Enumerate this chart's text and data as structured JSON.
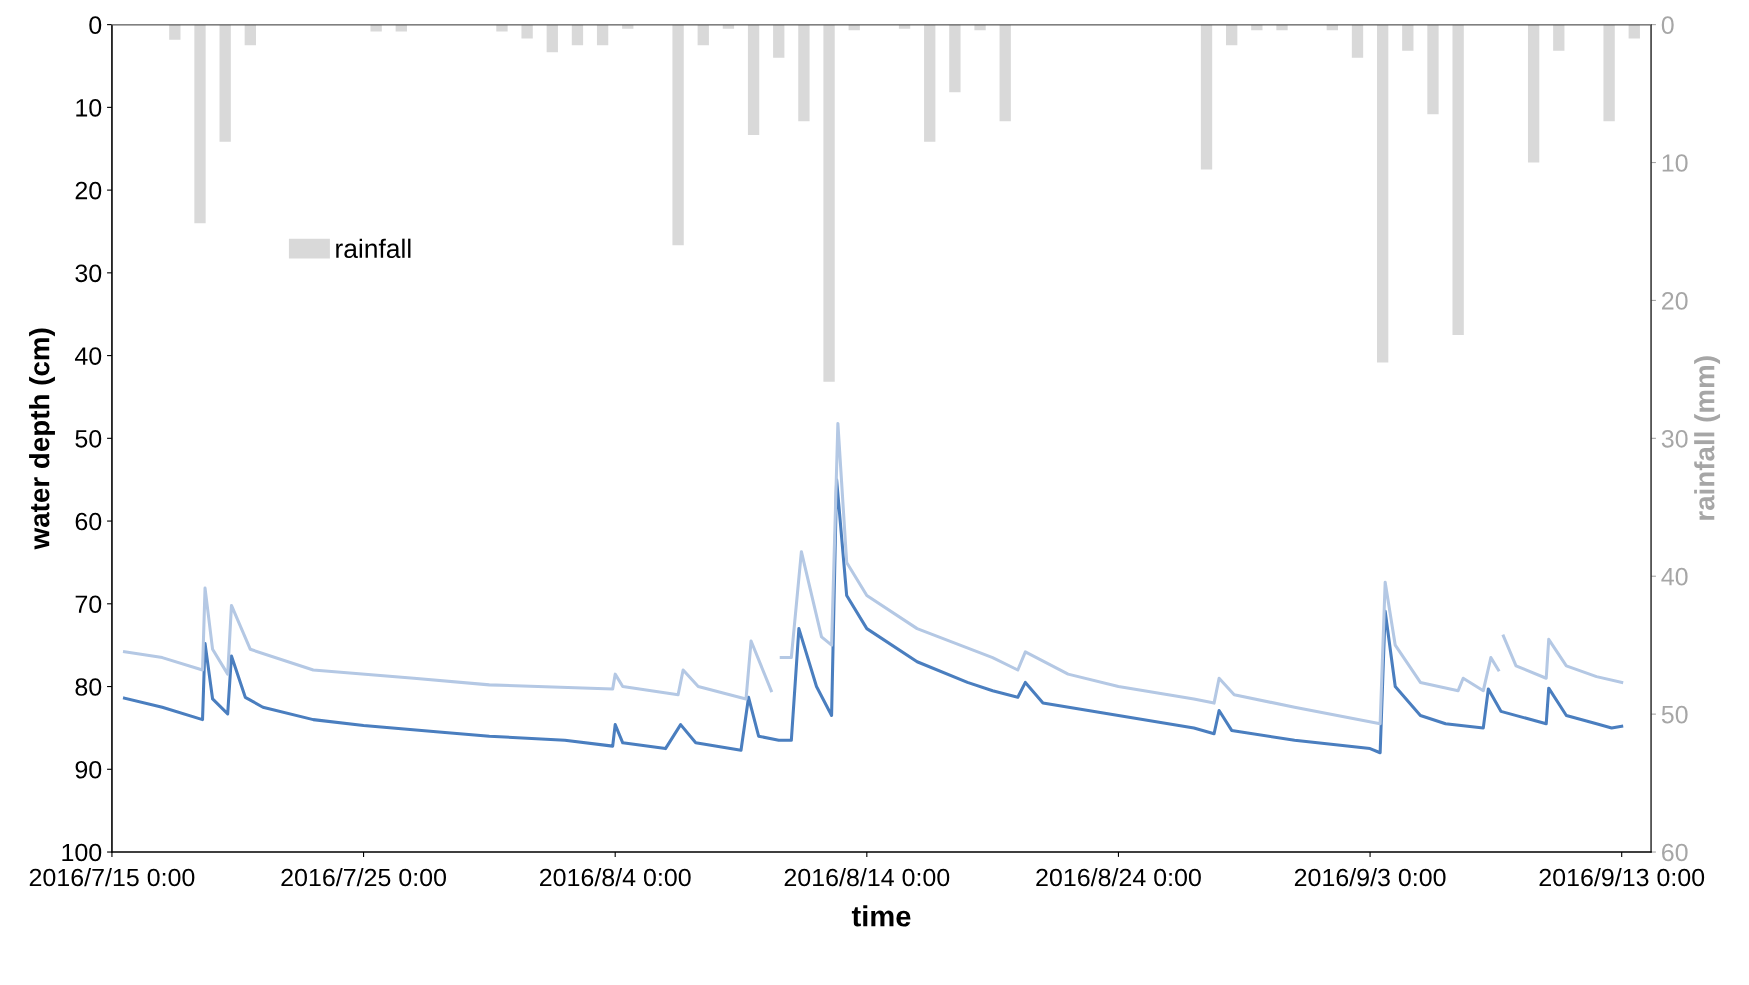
{
  "chart_data": {
    "type": "line",
    "xlabel": "time",
    "ylabel": "water depth (cm)",
    "y2label": "rainfall (mm)",
    "xlim": [
      "2016-07-15",
      "2016-09-14T04:00"
    ],
    "xticks": [
      {
        "value": "2016-07-15",
        "label": "2016/7/15 0:00"
      },
      {
        "value": "2016-07-25",
        "label": "2016/7/25 0:00"
      },
      {
        "value": "2016-08-04",
        "label": "2016/8/4 0:00"
      },
      {
        "value": "2016-08-14",
        "label": "2016/8/14 0:00"
      },
      {
        "value": "2016-08-24",
        "label": "2016/8/24 0:00"
      },
      {
        "value": "2016-09-03",
        "label": "2016/9/3 0:00"
      },
      {
        "value": "2016-09-13",
        "label": "2016/9/13 0:00"
      }
    ],
    "ylim": [
      100,
      0
    ],
    "yticks": [
      0,
      10,
      20,
      30,
      40,
      50,
      60,
      70,
      80,
      90,
      100
    ],
    "y2lim": [
      60,
      0
    ],
    "y2ticks": [
      0,
      10,
      20,
      30,
      40,
      50,
      60
    ],
    "grid": false,
    "legend": "top left",
    "marker": "none",
    "line_style": "solid",
    "series": [
      {
        "name": "rainfall",
        "type": "bar",
        "axis": "y2",
        "color": "#d9d9d9",
        "x": [
          "2016-07-17T12:00",
          "2016-07-18T12:00",
          "2016-07-19T12:00",
          "2016-07-20T12:00",
          "2016-07-25T12:00",
          "2016-07-26T12:00",
          "2016-07-30T12:00",
          "2016-07-31T12:00",
          "2016-08-01T12:00",
          "2016-08-02T12:00",
          "2016-08-03T12:00",
          "2016-08-04T12:00",
          "2016-08-06T12:00",
          "2016-08-07T12:00",
          "2016-08-08T12:00",
          "2016-08-09T12:00",
          "2016-08-10T12:00",
          "2016-08-11T12:00",
          "2016-08-12T12:00",
          "2016-08-13T12:00",
          "2016-08-15T12:00",
          "2016-08-16T12:00",
          "2016-08-17T12:00",
          "2016-08-18T12:00",
          "2016-08-19T12:00",
          "2016-08-27T12:00",
          "2016-08-28T12:00",
          "2016-08-29T12:00",
          "2016-08-30T12:00",
          "2016-09-01T12:00",
          "2016-09-02T12:00",
          "2016-09-03T12:00",
          "2016-09-04T12:00",
          "2016-09-05T12:00",
          "2016-09-06T12:00",
          "2016-09-09T12:00",
          "2016-09-10T12:00",
          "2016-09-12T12:00",
          "2016-09-13T12:00"
        ],
        "values": [
          1.1,
          14.4,
          8.5,
          1.5,
          0.5,
          0.5,
          0.5,
          1.0,
          2.0,
          1.5,
          1.5,
          0.3,
          16.0,
          1.5,
          0.3,
          8.0,
          2.4,
          7.0,
          25.9,
          0.4,
          0.3,
          8.5,
          4.9,
          0.4,
          7.0,
          10.5,
          1.5,
          0.4,
          0.4,
          0.4,
          2.4,
          24.5,
          1.9,
          6.5,
          22.5,
          10.0,
          1.9,
          7.0,
          1.0
        ]
      },
      {
        "color": "#4a7ebf",
        "x": [
          "2016-07-15T12:00",
          "2016-07-17",
          "2016-07-18T14:24",
          "2016-07-18T16:48",
          "2016-07-19",
          "2016-07-19T14:24",
          "2016-07-19T18:00",
          "2016-07-20T07:12",
          "2016-07-21",
          "2016-07-23",
          "2016-07-25",
          "2016-07-28",
          "2016-07-30",
          "2016-08-02",
          "2016-08-03T21:36",
          "2016-08-04",
          "2016-08-04T07:12",
          "2016-08-06",
          "2016-08-06T14:24",
          "2016-08-07T04:48",
          "2016-08-09",
          "2016-08-09T07:12",
          "2016-08-09T16:48",
          "2016-08-10T12:00",
          "2016-08-11",
          "2016-08-11T07:12",
          "2016-08-12",
          "2016-08-12T14:24",
          "2016-08-12T19:12",
          "2016-08-13T04:48",
          "2016-08-14",
          "2016-08-16",
          "2016-08-18",
          "2016-08-19",
          "2016-08-20",
          "2016-08-20T07:12",
          "2016-08-21",
          "2016-08-24",
          "2016-08-27",
          "2016-08-27T19:12",
          "2016-08-28",
          "2016-08-28T12:00",
          "2016-08-31",
          "2016-09-03",
          "2016-09-03T09:36",
          "2016-09-03T14:24",
          "2016-09-04",
          "2016-09-05",
          "2016-09-06",
          "2016-09-07T12:00",
          "2016-09-07T16:48",
          "2016-09-08T04:48",
          "2016-09-10",
          "2016-09-10T02:24",
          "2016-09-10T19:12",
          "2016-09-12",
          "2016-09-12T14:24",
          "2016-09-13"
        ],
        "values": [
          81.4,
          82.5,
          84,
          74.8,
          81.5,
          83.3,
          76.3,
          81.3,
          82.5,
          84,
          84.7,
          85.5,
          86,
          86.5,
          87.2,
          84.6,
          86.8,
          87.5,
          84.6,
          86.8,
          87.7,
          81.3,
          86,
          86.5,
          86.5,
          73,
          80,
          83.5,
          55,
          69,
          73,
          77,
          79.5,
          80.5,
          81.3,
          79.5,
          82,
          83.5,
          85,
          85.7,
          82.9,
          85.3,
          86.5,
          87.5,
          88,
          70.9,
          80,
          83.5,
          84.5,
          85,
          80.3,
          83,
          84.5,
          80.2,
          83.5,
          84.5,
          85,
          84.8
        ]
      },
      {
        "color": "#b4c8e4",
        "x": [
          "2016-07-15T12:00",
          "2016-07-17",
          "2016-07-18T14:24",
          "2016-07-18T16:48",
          "2016-07-19",
          "2016-07-19T14:24",
          "2016-07-19T18:00",
          "2016-07-20T12:00",
          "2016-07-23",
          "2016-07-27",
          "2016-07-30",
          "2016-08-03T21:36",
          "2016-08-04",
          "2016-08-04T07:12",
          "2016-08-06T12:00",
          "2016-08-06T16:48",
          "2016-08-07T07:12",
          "2016-08-09T04:48",
          "2016-08-09T09:36",
          "2016-08-10T04:48",
          "2016-08-10T09:36",
          "2016-08-10T14:24",
          "2016-08-11",
          "2016-08-11T09:36",
          "2016-08-12T04:48",
          "2016-08-12T14:24",
          "2016-08-12T20:24",
          "2016-08-13T04:48",
          "2016-08-14",
          "2016-08-16",
          "2016-08-19",
          "2016-08-20",
          "2016-08-20T07:12",
          "2016-08-22",
          "2016-08-24",
          "2016-08-27",
          "2016-08-27T19:12",
          "2016-08-28",
          "2016-08-28T14:24",
          "2016-08-31",
          "2016-09-03T09:36",
          "2016-09-03T14:24",
          "2016-09-04",
          "2016-09-05",
          "2016-09-06T12:00",
          "2016-09-06T16:48",
          "2016-09-07T12:00",
          "2016-09-07T19:12",
          "2016-09-08T02:24",
          "2016-09-08T04:48",
          "2016-09-08T07:12",
          "2016-09-08T19:12",
          "2016-09-10",
          "2016-09-10T02:24",
          "2016-09-10T19:12",
          "2016-09-12",
          "2016-09-13"
        ],
        "values": [
          75.8,
          76.5,
          78,
          68.1,
          75.5,
          78.5,
          70.2,
          75.5,
          78,
          79,
          79.8,
          80.3,
          78.5,
          80,
          81,
          78,
          80,
          81.5,
          74.5,
          80.5,
          null,
          76.5,
          76.5,
          63.7,
          74,
          75,
          48.2,
          65,
          69,
          73,
          76.5,
          78,
          75.8,
          78.5,
          80,
          81.5,
          82,
          79,
          81,
          82.5,
          84.5,
          67.4,
          75,
          79.5,
          80.5,
          79,
          80.5,
          76.5,
          78,
          null,
          73.9,
          77.5,
          79,
          74.3,
          77.5,
          78.8,
          79.5
        ]
      }
    ]
  }
}
